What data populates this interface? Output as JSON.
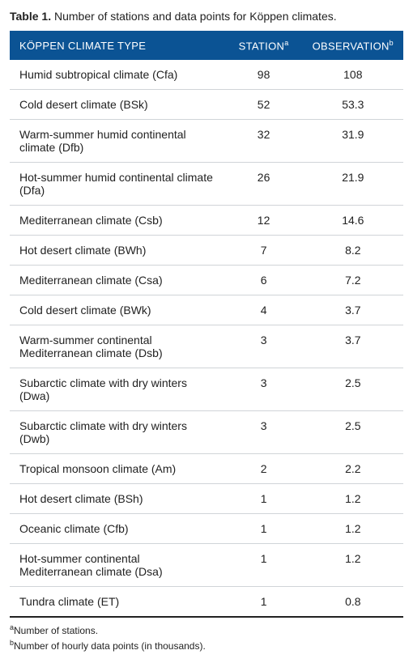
{
  "caption_label": "Table 1.",
  "caption_text": "Number of stations and data points for Köppen climates.",
  "header": {
    "type": "KÖPPEN CLIMATE TYPE",
    "station": "STATION",
    "station_sup": "a",
    "observation": "OBSERVATION",
    "observation_sup": "b"
  },
  "rows": [
    {
      "type": "Humid subtropical climate (Cfa)",
      "station": "98",
      "obs": "108"
    },
    {
      "type": "Cold desert climate (BSk)",
      "station": "52",
      "obs": "53.3"
    },
    {
      "type": "Warm-summer humid continental climate (Dfb)",
      "station": "32",
      "obs": "31.9"
    },
    {
      "type": "Hot-summer humid continental climate (Dfa)",
      "station": "26",
      "obs": "21.9"
    },
    {
      "type": "Mediterranean climate (Csb)",
      "station": "12",
      "obs": "14.6"
    },
    {
      "type": "Hot desert climate (BWh)",
      "station": "7",
      "obs": "8.2"
    },
    {
      "type": "Mediterranean climate (Csa)",
      "station": "6",
      "obs": "7.2"
    },
    {
      "type": "Cold desert climate (BWk)",
      "station": "4",
      "obs": "3.7"
    },
    {
      "type": "Warm-summer continental Mediterranean climate (Dsb)",
      "station": "3",
      "obs": "3.7"
    },
    {
      "type": "Subarctic climate with dry winters (Dwa)",
      "station": "3",
      "obs": "2.5"
    },
    {
      "type": "Subarctic climate with dry winters (Dwb)",
      "station": "3",
      "obs": "2.5"
    },
    {
      "type": "Tropical monsoon climate (Am)",
      "station": "2",
      "obs": "2.2"
    },
    {
      "type": "Hot desert climate (BSh)",
      "station": "1",
      "obs": "1.2"
    },
    {
      "type": "Oceanic climate (Cfb)",
      "station": "1",
      "obs": "1.2"
    },
    {
      "type": "Hot-summer continental Mediterranean climate (Dsa)",
      "station": "1",
      "obs": "1.2"
    },
    {
      "type": "Tundra climate (ET)",
      "station": "1",
      "obs": "0.8"
    }
  ],
  "footnotes": {
    "a_sup": "a",
    "a_text": "Number of stations.",
    "b_sup": "b",
    "b_text": "Number of hourly data points (in thousands)."
  },
  "colors": {
    "header_bg": "#0b5394",
    "header_fg": "#ffffff",
    "border": "#d0d4d8",
    "text": "#222222"
  }
}
